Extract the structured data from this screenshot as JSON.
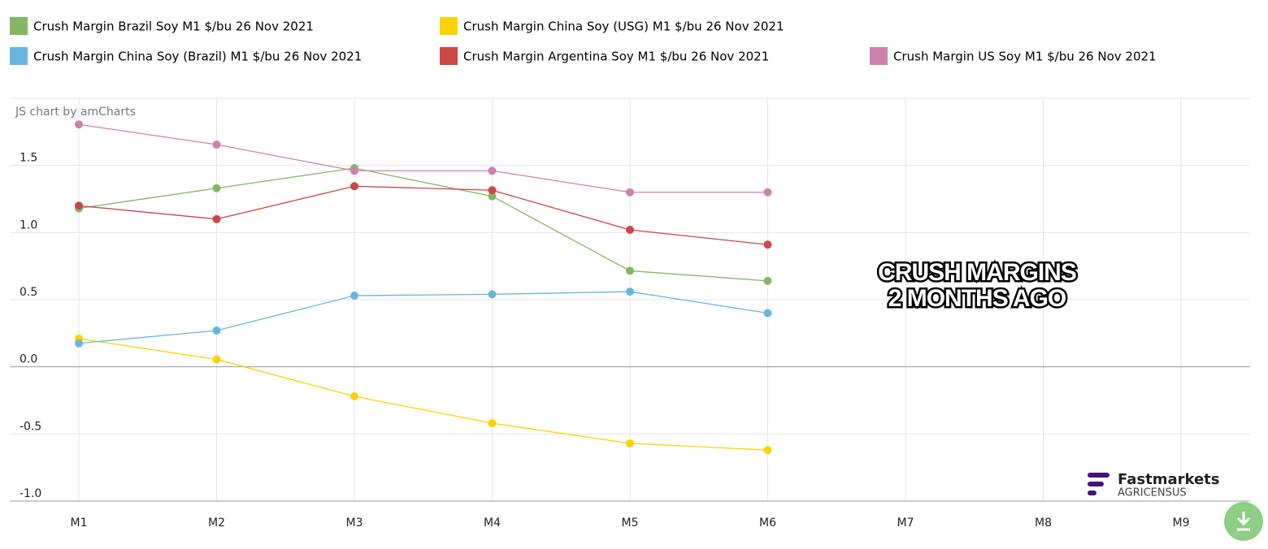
{
  "chart_data": {
    "type": "line",
    "categories": [
      "M1",
      "M2",
      "M3",
      "M4",
      "M5",
      "M6",
      "M7",
      "M8",
      "M9"
    ],
    "series": [
      {
        "name": "Crush Margin Brazil Soy M1 $/bu 26 Nov 2021",
        "color": "#84b761",
        "values": [
          1.18,
          1.33,
          1.48,
          1.27,
          0.715,
          0.64,
          null,
          null,
          null
        ]
      },
      {
        "name": "Crush Margin China Soy (USG) M1 $/bu 26 Nov 2021",
        "color": "#fcd202",
        "values": [
          0.21,
          0.055,
          -0.22,
          -0.42,
          -0.57,
          -0.62,
          null,
          null,
          null
        ]
      },
      {
        "name": "Crush Margin China Soy (Brazil) M1 $/bu 26 Nov 2021",
        "color": "#67b7dc",
        "values": [
          0.175,
          0.27,
          0.53,
          0.54,
          0.56,
          0.4,
          null,
          null,
          null
        ]
      },
      {
        "name": "Crush Margin Argentina Soy M1 $/bu 26 Nov 2021",
        "color": "#cc4748",
        "values": [
          1.2,
          1.1,
          1.345,
          1.315,
          1.02,
          0.91,
          null,
          null,
          null
        ]
      },
      {
        "name": "Crush Margin US Soy M1 $/bu 26 Nov 2021",
        "color": "#cd82ad",
        "values": [
          1.805,
          1.655,
          1.46,
          1.46,
          1.3,
          1.3,
          null,
          null,
          null
        ]
      }
    ],
    "ylim": [
      -1,
      2
    ],
    "yticks": [
      {
        "value": -1,
        "label": "-1.0"
      },
      -0.5,
      {
        "value": 0,
        "label": "0.0"
      },
      0.5,
      {
        "value": 1,
        "label": "1.0"
      },
      1.5
    ],
    "grid": true,
    "annotations": [
      "JS chart by amCharts",
      "CRUSH MARGINS",
      "2 MONTHS AGO",
      "Fastmarkets",
      "AGRICENSUS"
    ]
  }
}
